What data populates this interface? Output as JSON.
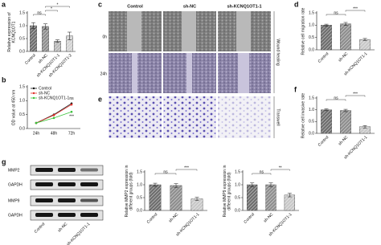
{
  "chart_data": [
    {
      "type": "bar",
      "panel": "a",
      "ylabel": [
        "Relative expression of",
        "KCNQ1OT1"
      ],
      "categories": [
        "Control",
        "sh-NC",
        "sh-KCNQ1OT1-1",
        "sh-KCNQ1OT1-2"
      ],
      "values": [
        1.0,
        0.97,
        0.4,
        0.6
      ],
      "errors": [
        0.12,
        0.1,
        0.05,
        0.15
      ],
      "colors": [
        "#6e6e6e",
        "#8e8e8e",
        "#b8b8b8",
        "#d2d2d2"
      ],
      "ylim": [
        0,
        1.5
      ],
      "yticks": [
        {
          "value": 0,
          "label": "0.0"
        },
        0.5,
        {
          "value": 1,
          "label": "1.0"
        },
        1.5
      ],
      "annotations": [
        "ns",
        "*",
        "*"
      ]
    },
    {
      "type": "line",
      "panel": "b",
      "ylabel": [
        "OD value at 450 nm"
      ],
      "categories": [
        "24h",
        "48h",
        "72h"
      ],
      "series": [
        {
          "name": "Control",
          "color": "#111111",
          "values": [
            0.2,
            0.5,
            0.9
          ]
        },
        {
          "name": "sh-NC",
          "color": "#e0302a",
          "values": [
            0.2,
            0.48,
            0.86
          ]
        },
        {
          "name": "sh-KCNQ1OT1-1",
          "color": "#3cc23c",
          "values": [
            0.2,
            0.38,
            0.6
          ]
        }
      ],
      "ylim": [
        0,
        1.5
      ],
      "yticks": [
        {
          "value": 0,
          "label": "0.0"
        },
        0.5,
        {
          "value": 1,
          "label": "1.0"
        },
        1.5
      ],
      "legend": "top-left",
      "annotations": [
        "ns",
        "***"
      ]
    },
    {
      "type": "bar",
      "panel": "d",
      "ylabel": [
        "Relative cell migration rate"
      ],
      "categories": [
        "Control",
        "sh-NC",
        "sh-KCNQ1OT1-1"
      ],
      "values": [
        1.0,
        1.05,
        0.42
      ],
      "errors": [
        0.04,
        0.06,
        0.04
      ],
      "colors": [
        "#6e6e6e",
        "#8e8e8e",
        "#c8c8c8"
      ],
      "ylim": [
        0,
        1.5
      ],
      "yticks": [
        {
          "value": 0,
          "label": "0.0"
        },
        0.5,
        {
          "value": 1,
          "label": "1.0"
        },
        1.5
      ],
      "annotations": [
        "ns",
        "***"
      ]
    },
    {
      "type": "bar",
      "panel": "f",
      "ylabel": [
        "Relative cell invasive rate"
      ],
      "categories": [
        "Control",
        "sh-NC",
        "sh-KCNQ1OT1-1"
      ],
      "values": [
        1.0,
        0.97,
        0.28
      ],
      "errors": [
        0.04,
        0.05,
        0.05
      ],
      "colors": [
        "#6e6e6e",
        "#8e8e8e",
        "#c8c8c8"
      ],
      "ylim": [
        0,
        1.5
      ],
      "yticks": [
        {
          "value": 0,
          "label": "0.0"
        },
        0.5,
        {
          "value": 1,
          "label": "1.0"
        },
        1.5
      ],
      "annotations": [
        "ns",
        "***"
      ]
    },
    {
      "type": "bar",
      "ylabel": [
        "Relative MMP2 expression in",
        "different groups (fold)"
      ],
      "categories": [
        "Control",
        "sh-NC",
        "sh-KCNQ1OT1-1"
      ],
      "values": [
        1.0,
        0.97,
        0.45
      ],
      "errors": [
        0.06,
        0.07,
        0.06
      ],
      "colors": [
        "#6e6e6e",
        "#8e8e8e",
        "#c8c8c8"
      ],
      "ylim": [
        0,
        1.5
      ],
      "yticks": [
        {
          "value": 0,
          "label": "0.0"
        },
        0.5,
        {
          "value": 1,
          "label": "1.0"
        },
        1.5
      ],
      "annotations": [
        "ns",
        "***"
      ]
    },
    {
      "type": "bar",
      "ylabel": [
        "Relative MMP9 expression in",
        "different groups (fold)"
      ],
      "categories": [
        "Control",
        "sh-NC",
        "sh-KCNQ1OT1-1"
      ],
      "values": [
        1.0,
        1.0,
        0.6
      ],
      "errors": [
        0.07,
        0.07,
        0.07
      ],
      "colors": [
        "#6e6e6e",
        "#8e8e8e",
        "#c8c8c8"
      ],
      "ylim": [
        0,
        1.5
      ],
      "yticks": [
        {
          "value": 0,
          "label": "0.0"
        },
        0.5,
        {
          "value": 1,
          "label": "1.0"
        },
        1.5
      ],
      "annotations": [
        "ns",
        "**"
      ]
    }
  ],
  "images": {
    "c": {
      "panel": "c",
      "columns": [
        "Control",
        "sh-NC",
        "sh-KCNQ1OT1-1"
      ],
      "rows": [
        "0h",
        "24h"
      ],
      "side_label": "Wound healing"
    },
    "e": {
      "panel": "e",
      "side_label": "Transwell"
    },
    "g": {
      "panel": "g",
      "rows": [
        "MMP2",
        "GAPDH",
        "MMP9",
        "GAPDH"
      ],
      "columns": [
        "Control",
        "sh-NC",
        "sh-KCNQ1OT1-1"
      ]
    }
  }
}
